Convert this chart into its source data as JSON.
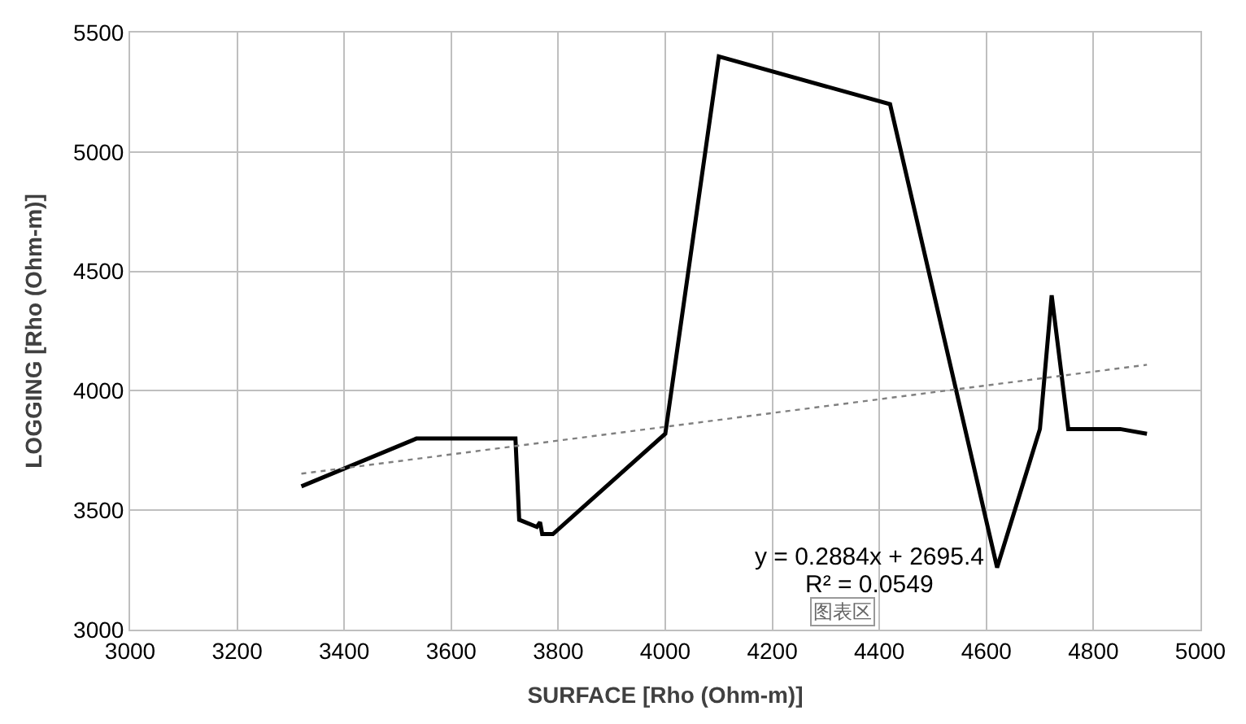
{
  "chart_data": {
    "type": "line",
    "xlabel": "SURFACE [Rho (Ohm-m)]",
    "ylabel": "LOGGING [Rho (Ohm-m)]",
    "series": [
      {
        "color": "#000000",
        "x": [
          3320,
          3535,
          3720,
          3727,
          3760,
          3766,
          3770,
          3790,
          4000,
          4100,
          4420,
          4620,
          4700,
          4722,
          4753,
          4850,
          4900
        ],
        "values": [
          3600,
          3800,
          3800,
          3460,
          3430,
          3450,
          3400,
          3400,
          3820,
          5400,
          5200,
          3260,
          3840,
          4400,
          3840,
          3840,
          3820
        ]
      },
      {
        "color": "#808080",
        "line_style": "dotted",
        "x": [
          3320,
          4900
        ],
        "values": [
          3653,
          4109
        ]
      }
    ],
    "xlim": [
      3000,
      5000
    ],
    "xticks": [
      3000,
      3200,
      3400,
      3600,
      3800,
      4000,
      4200,
      4400,
      4600,
      4800,
      5000
    ],
    "ylim": [
      3000,
      5500
    ],
    "yticks": [
      3000,
      3500,
      4000,
      4500,
      5000,
      5500
    ],
    "grid": true,
    "marker": "none",
    "annotations": [
      "y = 0.2884x + 2695.4",
      "R² = 0.0549",
      "图表区"
    ]
  }
}
